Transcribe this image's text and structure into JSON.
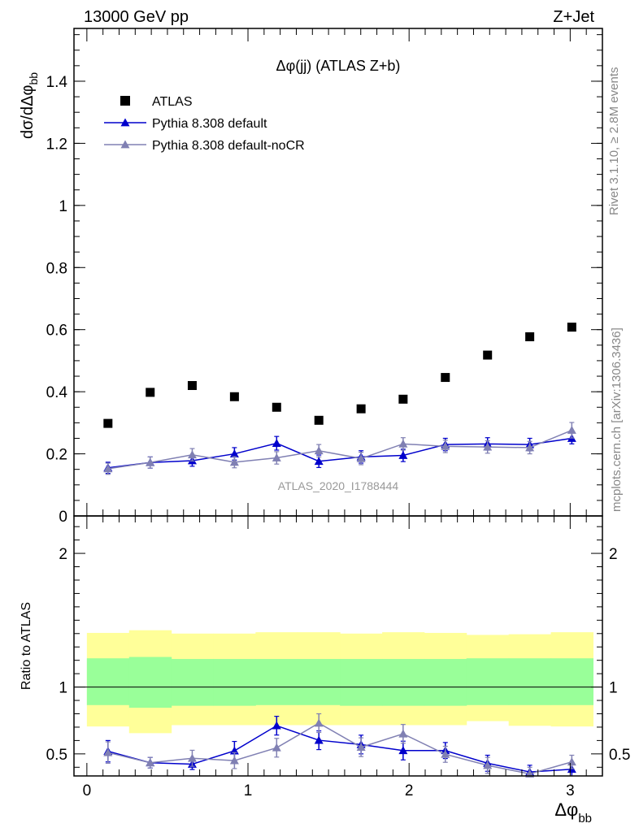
{
  "header": {
    "energy_label": "13000 GeV pp",
    "process_label": "Z+Jet"
  },
  "side_labels": {
    "rivet": "Rivet 3.1.10, ≥ 2.8M events",
    "site": "mcplots.cern.ch [arXiv:1306.3436]"
  },
  "chart_data": [
    {
      "type": "scatter",
      "title": "Δφ(jj) (ATLAS Z+b)",
      "watermark": "ATLAS_2020_I1788444",
      "ylabel": "dσ/dΔφ_bb",
      "xlim": [
        -0.08,
        3.2
      ],
      "ylim": [
        0,
        1.57
      ],
      "y_ticks": [
        0,
        0.2,
        0.4,
        0.6,
        0.8,
        1,
        1.2,
        1.4
      ],
      "y_tick_labels": [
        "0",
        "0.2",
        "0.4",
        "0.6",
        "0.8",
        "1",
        "1.2",
        "1.4"
      ],
      "legend_position": "top-left",
      "x": [
        0.131,
        0.393,
        0.654,
        0.916,
        1.178,
        1.44,
        1.702,
        1.963,
        2.225,
        2.487,
        2.749,
        3.01
      ],
      "series": [
        {
          "name": "ATLAS",
          "color": "#000000",
          "marker": "square",
          "values": [
            0.298,
            0.398,
            0.42,
            0.384,
            0.35,
            0.308,
            0.345,
            0.376,
            0.446,
            0.518,
            0.577,
            0.608
          ]
        },
        {
          "name": "Pythia 8.308 default",
          "color": "#0000cc",
          "marker": "triangle",
          "values": [
            0.155,
            0.172,
            0.178,
            0.2,
            0.234,
            0.176,
            0.19,
            0.195,
            0.23,
            0.232,
            0.23,
            0.25
          ],
          "errors": [
            0.018,
            0.018,
            0.018,
            0.02,
            0.022,
            0.02,
            0.02,
            0.02,
            0.02,
            0.02,
            0.02,
            0.018
          ]
        },
        {
          "name": "Pythia 8.308 default-noCR",
          "color": "#8080b3",
          "marker": "triangle",
          "values": [
            0.152,
            0.172,
            0.197,
            0.173,
            0.187,
            0.21,
            0.185,
            0.232,
            0.224,
            0.222,
            0.22,
            0.276
          ],
          "errors": [
            0.018,
            0.018,
            0.02,
            0.018,
            0.02,
            0.02,
            0.02,
            0.02,
            0.02,
            0.02,
            0.02,
            0.025
          ]
        }
      ]
    },
    {
      "type": "scatter",
      "ylabel": "Ratio to ATLAS",
      "xlabel": "Δφ_bb",
      "xlim": [
        -0.08,
        3.2
      ],
      "ylim": [
        0.335,
        2.28
      ],
      "y_ticks": [
        0.5,
        1,
        2
      ],
      "y_tick_labels": [
        "0.5",
        "1",
        "2"
      ],
      "x_ticks": [
        0,
        1,
        2,
        3
      ],
      "x_tick_labels": [
        "0",
        "1",
        "2",
        "3"
      ],
      "bin_edges": [
        0,
        0.262,
        0.524,
        0.785,
        1.047,
        1.309,
        1.571,
        1.833,
        2.094,
        2.356,
        2.618,
        2.88,
        3.142
      ],
      "band_inner": {
        "color": "#99ff99",
        "low": [
          0.865,
          0.845,
          0.86,
          0.86,
          0.865,
          0.865,
          0.86,
          0.86,
          0.86,
          0.865,
          0.865,
          0.865
        ],
        "high": [
          1.215,
          1.225,
          1.21,
          1.21,
          1.21,
          1.21,
          1.21,
          1.21,
          1.21,
          1.215,
          1.215,
          1.215
        ]
      },
      "band_outer": {
        "color": "#ffff99",
        "low": [
          0.705,
          0.655,
          0.715,
          0.715,
          0.715,
          0.715,
          0.715,
          0.715,
          0.715,
          0.745,
          0.71,
          0.705
        ],
        "high": [
          1.405,
          1.425,
          1.4,
          1.4,
          1.41,
          1.41,
          1.4,
          1.41,
          1.405,
          1.39,
          1.395,
          1.41
        ]
      },
      "reference_line": 1,
      "x": [
        0.131,
        0.393,
        0.654,
        0.916,
        1.178,
        1.44,
        1.702,
        1.963,
        2.225,
        2.487,
        2.749,
        3.01
      ],
      "series": [
        {
          "name": "Pythia 8.308 default",
          "color": "#0000cc",
          "values": [
            0.52,
            0.434,
            0.423,
            0.523,
            0.711,
            0.602,
            0.57,
            0.525,
            0.525,
            0.43,
            0.365,
            0.385
          ],
          "errors": [
            0.08,
            0.04,
            0.04,
            0.07,
            0.07,
            0.07,
            0.07,
            0.07,
            0.06,
            0.06,
            0.05,
            0.05
          ]
        },
        {
          "name": "Pythia 8.308 default-noCR",
          "color": "#8080b3",
          "values": [
            0.51,
            0.434,
            0.467,
            0.45,
            0.546,
            0.73,
            0.55,
            0.65,
            0.497,
            0.414,
            0.35,
            0.44
          ],
          "errors": [
            0.08,
            0.04,
            0.06,
            0.06,
            0.07,
            0.07,
            0.07,
            0.07,
            0.06,
            0.06,
            0.05,
            0.05
          ]
        }
      ]
    }
  ]
}
